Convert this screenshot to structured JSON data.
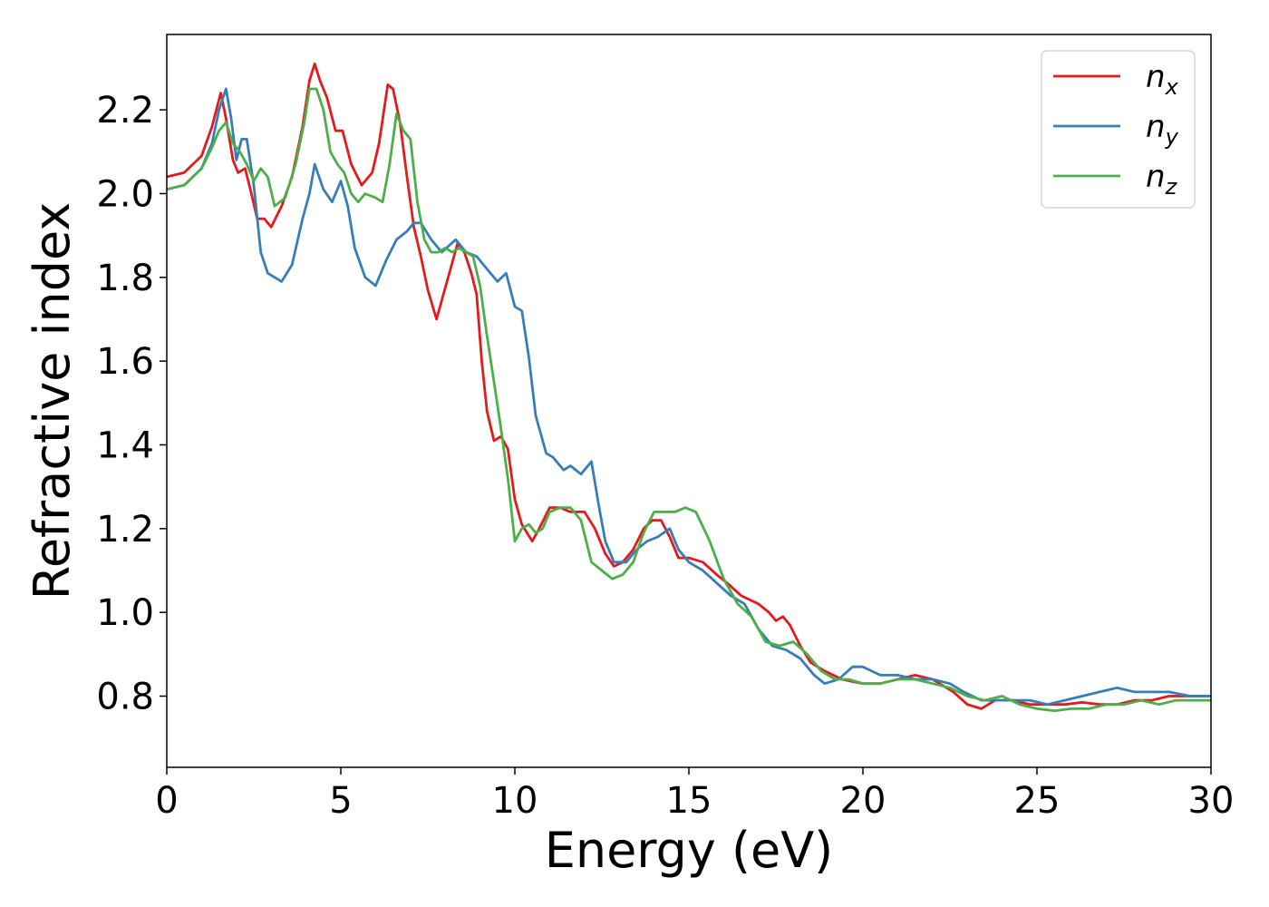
{
  "chart_data": {
    "type": "line",
    "title": "",
    "xlabel": "Energy (eV)",
    "ylabel": "Refractive index",
    "xlim": [
      0,
      30
    ],
    "ylim": [
      0.63,
      2.38
    ],
    "xticks": [
      0,
      5,
      10,
      15,
      20,
      25,
      30
    ],
    "xtick_labels": [
      "0",
      "5",
      "10",
      "15",
      "20",
      "25",
      "30"
    ],
    "yticks": [
      0.8,
      1.0,
      1.2,
      1.4,
      1.6,
      1.8,
      2.0,
      2.2
    ],
    "ytick_labels": [
      "0.8",
      "1.0",
      "1.2",
      "1.4",
      "1.6",
      "1.8",
      "2.0",
      "2.2"
    ],
    "grid": false,
    "legend_position": "top-right",
    "series": [
      {
        "name": "n",
        "sub": "x",
        "color": "#e41a1c",
        "points": [
          [
            0,
            2.04
          ],
          [
            0.5,
            2.05
          ],
          [
            1.0,
            2.09
          ],
          [
            1.3,
            2.16
          ],
          [
            1.55,
            2.24
          ],
          [
            1.7,
            2.18
          ],
          [
            1.9,
            2.08
          ],
          [
            2.05,
            2.05
          ],
          [
            2.25,
            2.06
          ],
          [
            2.4,
            2.01
          ],
          [
            2.6,
            1.94
          ],
          [
            2.8,
            1.94
          ],
          [
            3.0,
            1.92
          ],
          [
            3.3,
            1.97
          ],
          [
            3.6,
            2.04
          ],
          [
            3.9,
            2.16
          ],
          [
            4.1,
            2.27
          ],
          [
            4.25,
            2.31
          ],
          [
            4.4,
            2.27
          ],
          [
            4.6,
            2.23
          ],
          [
            4.85,
            2.15
          ],
          [
            5.05,
            2.15
          ],
          [
            5.3,
            2.07
          ],
          [
            5.6,
            2.02
          ],
          [
            5.9,
            2.05
          ],
          [
            6.1,
            2.12
          ],
          [
            6.35,
            2.26
          ],
          [
            6.5,
            2.25
          ],
          [
            6.7,
            2.17
          ],
          [
            6.9,
            2.04
          ],
          [
            7.1,
            1.92
          ],
          [
            7.3,
            1.85
          ],
          [
            7.5,
            1.77
          ],
          [
            7.75,
            1.7
          ],
          [
            7.95,
            1.76
          ],
          [
            8.15,
            1.82
          ],
          [
            8.35,
            1.88
          ],
          [
            8.55,
            1.86
          ],
          [
            8.75,
            1.81
          ],
          [
            8.9,
            1.76
          ],
          [
            9.05,
            1.6
          ],
          [
            9.2,
            1.48
          ],
          [
            9.4,
            1.41
          ],
          [
            9.6,
            1.42
          ],
          [
            9.8,
            1.39
          ],
          [
            10.0,
            1.27
          ],
          [
            10.2,
            1.21
          ],
          [
            10.5,
            1.17
          ],
          [
            10.7,
            1.2
          ],
          [
            11.0,
            1.25
          ],
          [
            11.3,
            1.25
          ],
          [
            11.6,
            1.24
          ],
          [
            12.0,
            1.24
          ],
          [
            12.3,
            1.2
          ],
          [
            12.6,
            1.14
          ],
          [
            12.85,
            1.11
          ],
          [
            13.1,
            1.12
          ],
          [
            13.4,
            1.15
          ],
          [
            13.7,
            1.2
          ],
          [
            13.95,
            1.22
          ],
          [
            14.2,
            1.22
          ],
          [
            14.45,
            1.18
          ],
          [
            14.7,
            1.13
          ],
          [
            15.0,
            1.13
          ],
          [
            15.4,
            1.12
          ],
          [
            15.8,
            1.09
          ],
          [
            16.1,
            1.07
          ],
          [
            16.5,
            1.04
          ],
          [
            17.0,
            1.02
          ],
          [
            17.3,
            1.0
          ],
          [
            17.5,
            0.98
          ],
          [
            17.7,
            0.99
          ],
          [
            17.9,
            0.97
          ],
          [
            18.2,
            0.92
          ],
          [
            18.5,
            0.88
          ],
          [
            18.9,
            0.86
          ],
          [
            19.4,
            0.84
          ],
          [
            20.0,
            0.83
          ],
          [
            20.5,
            0.83
          ],
          [
            21.0,
            0.84
          ],
          [
            21.5,
            0.85
          ],
          [
            22.0,
            0.84
          ],
          [
            22.6,
            0.81
          ],
          [
            23.0,
            0.78
          ],
          [
            23.4,
            0.77
          ],
          [
            23.8,
            0.79
          ],
          [
            24.3,
            0.79
          ],
          [
            24.8,
            0.78
          ],
          [
            25.3,
            0.78
          ],
          [
            25.8,
            0.78
          ],
          [
            26.3,
            0.785
          ],
          [
            26.8,
            0.78
          ],
          [
            27.3,
            0.78
          ],
          [
            27.8,
            0.79
          ],
          [
            28.3,
            0.79
          ],
          [
            28.8,
            0.8
          ],
          [
            29.4,
            0.8
          ],
          [
            30.0,
            0.8
          ]
        ]
      },
      {
        "name": "n",
        "sub": "y",
        "color": "#377eb8",
        "points": [
          [
            0,
            2.01
          ],
          [
            0.5,
            2.02
          ],
          [
            1.0,
            2.06
          ],
          [
            1.3,
            2.12
          ],
          [
            1.5,
            2.2
          ],
          [
            1.7,
            2.25
          ],
          [
            1.85,
            2.18
          ],
          [
            2.0,
            2.08
          ],
          [
            2.15,
            2.13
          ],
          [
            2.3,
            2.13
          ],
          [
            2.5,
            2.02
          ],
          [
            2.7,
            1.86
          ],
          [
            2.9,
            1.81
          ],
          [
            3.1,
            1.8
          ],
          [
            3.3,
            1.79
          ],
          [
            3.6,
            1.83
          ],
          [
            3.9,
            1.94
          ],
          [
            4.1,
            2.0
          ],
          [
            4.25,
            2.07
          ],
          [
            4.5,
            2.01
          ],
          [
            4.75,
            1.98
          ],
          [
            5.0,
            2.03
          ],
          [
            5.2,
            1.97
          ],
          [
            5.4,
            1.87
          ],
          [
            5.7,
            1.8
          ],
          [
            6.0,
            1.78
          ],
          [
            6.3,
            1.84
          ],
          [
            6.6,
            1.89
          ],
          [
            6.9,
            1.91
          ],
          [
            7.1,
            1.93
          ],
          [
            7.3,
            1.93
          ],
          [
            7.6,
            1.89
          ],
          [
            7.9,
            1.86
          ],
          [
            8.3,
            1.89
          ],
          [
            8.6,
            1.86
          ],
          [
            8.9,
            1.85
          ],
          [
            9.2,
            1.82
          ],
          [
            9.5,
            1.79
          ],
          [
            9.75,
            1.81
          ],
          [
            10.0,
            1.73
          ],
          [
            10.2,
            1.72
          ],
          [
            10.4,
            1.61
          ],
          [
            10.6,
            1.47
          ],
          [
            10.9,
            1.38
          ],
          [
            11.1,
            1.37
          ],
          [
            11.4,
            1.34
          ],
          [
            11.6,
            1.35
          ],
          [
            11.9,
            1.33
          ],
          [
            12.2,
            1.36
          ],
          [
            12.4,
            1.26
          ],
          [
            12.6,
            1.17
          ],
          [
            12.85,
            1.12
          ],
          [
            13.2,
            1.12
          ],
          [
            13.5,
            1.15
          ],
          [
            13.8,
            1.17
          ],
          [
            14.1,
            1.18
          ],
          [
            14.45,
            1.2
          ],
          [
            14.7,
            1.15
          ],
          [
            15.0,
            1.12
          ],
          [
            15.4,
            1.1
          ],
          [
            15.8,
            1.07
          ],
          [
            16.2,
            1.04
          ],
          [
            16.6,
            1.02
          ],
          [
            17.0,
            0.96
          ],
          [
            17.4,
            0.92
          ],
          [
            17.8,
            0.91
          ],
          [
            18.2,
            0.89
          ],
          [
            18.6,
            0.85
          ],
          [
            18.9,
            0.83
          ],
          [
            19.3,
            0.84
          ],
          [
            19.7,
            0.87
          ],
          [
            20.0,
            0.87
          ],
          [
            20.5,
            0.85
          ],
          [
            21.0,
            0.85
          ],
          [
            21.5,
            0.84
          ],
          [
            22.0,
            0.84
          ],
          [
            22.5,
            0.83
          ],
          [
            22.9,
            0.81
          ],
          [
            23.4,
            0.79
          ],
          [
            23.8,
            0.79
          ],
          [
            24.3,
            0.79
          ],
          [
            24.8,
            0.79
          ],
          [
            25.3,
            0.78
          ],
          [
            25.8,
            0.79
          ],
          [
            26.3,
            0.8
          ],
          [
            26.8,
            0.81
          ],
          [
            27.3,
            0.82
          ],
          [
            27.8,
            0.81
          ],
          [
            28.3,
            0.81
          ],
          [
            28.8,
            0.81
          ],
          [
            29.4,
            0.8
          ],
          [
            30.0,
            0.8
          ]
        ]
      },
      {
        "name": "n",
        "sub": "z",
        "color": "#4daf4a",
        "points": [
          [
            0,
            2.01
          ],
          [
            0.5,
            2.02
          ],
          [
            1.0,
            2.06
          ],
          [
            1.3,
            2.11
          ],
          [
            1.5,
            2.15
          ],
          [
            1.7,
            2.17
          ],
          [
            1.9,
            2.12
          ],
          [
            2.1,
            2.1
          ],
          [
            2.3,
            2.07
          ],
          [
            2.5,
            2.03
          ],
          [
            2.7,
            2.06
          ],
          [
            2.9,
            2.04
          ],
          [
            3.1,
            1.97
          ],
          [
            3.4,
            1.99
          ],
          [
            3.7,
            2.07
          ],
          [
            3.95,
            2.17
          ],
          [
            4.1,
            2.25
          ],
          [
            4.3,
            2.25
          ],
          [
            4.5,
            2.2
          ],
          [
            4.7,
            2.1
          ],
          [
            4.9,
            2.07
          ],
          [
            5.1,
            2.05
          ],
          [
            5.3,
            2.0
          ],
          [
            5.5,
            1.98
          ],
          [
            5.7,
            2.0
          ],
          [
            6.0,
            1.99
          ],
          [
            6.2,
            1.98
          ],
          [
            6.4,
            2.07
          ],
          [
            6.6,
            2.19
          ],
          [
            6.8,
            2.15
          ],
          [
            7.0,
            2.13
          ],
          [
            7.2,
            1.98
          ],
          [
            7.4,
            1.89
          ],
          [
            7.6,
            1.86
          ],
          [
            7.8,
            1.86
          ],
          [
            8.0,
            1.87
          ],
          [
            8.2,
            1.86
          ],
          [
            8.4,
            1.87
          ],
          [
            8.6,
            1.86
          ],
          [
            8.8,
            1.85
          ],
          [
            9.0,
            1.78
          ],
          [
            9.2,
            1.66
          ],
          [
            9.4,
            1.55
          ],
          [
            9.6,
            1.44
          ],
          [
            9.8,
            1.32
          ],
          [
            10.0,
            1.17
          ],
          [
            10.2,
            1.2
          ],
          [
            10.4,
            1.21
          ],
          [
            10.6,
            1.19
          ],
          [
            10.8,
            1.2
          ],
          [
            11.0,
            1.24
          ],
          [
            11.3,
            1.25
          ],
          [
            11.6,
            1.25
          ],
          [
            11.9,
            1.22
          ],
          [
            12.2,
            1.12
          ],
          [
            12.5,
            1.1
          ],
          [
            12.8,
            1.08
          ],
          [
            13.1,
            1.09
          ],
          [
            13.4,
            1.12
          ],
          [
            13.7,
            1.19
          ],
          [
            14.0,
            1.24
          ],
          [
            14.3,
            1.24
          ],
          [
            14.6,
            1.24
          ],
          [
            14.9,
            1.25
          ],
          [
            15.2,
            1.24
          ],
          [
            15.6,
            1.17
          ],
          [
            16.0,
            1.08
          ],
          [
            16.4,
            1.02
          ],
          [
            16.8,
            0.99
          ],
          [
            17.2,
            0.93
          ],
          [
            17.6,
            0.92
          ],
          [
            18.0,
            0.93
          ],
          [
            18.4,
            0.9
          ],
          [
            18.8,
            0.86
          ],
          [
            19.2,
            0.84
          ],
          [
            19.6,
            0.84
          ],
          [
            20.0,
            0.83
          ],
          [
            20.5,
            0.83
          ],
          [
            21.0,
            0.84
          ],
          [
            21.5,
            0.84
          ],
          [
            22.0,
            0.83
          ],
          [
            22.5,
            0.82
          ],
          [
            23.0,
            0.8
          ],
          [
            23.5,
            0.79
          ],
          [
            24.0,
            0.8
          ],
          [
            24.5,
            0.78
          ],
          [
            25.0,
            0.77
          ],
          [
            25.5,
            0.765
          ],
          [
            26.0,
            0.77
          ],
          [
            26.5,
            0.77
          ],
          [
            27.0,
            0.78
          ],
          [
            27.5,
            0.78
          ],
          [
            28.0,
            0.79
          ],
          [
            28.5,
            0.78
          ],
          [
            29.0,
            0.79
          ],
          [
            29.5,
            0.79
          ],
          [
            30.0,
            0.79
          ]
        ]
      }
    ]
  }
}
